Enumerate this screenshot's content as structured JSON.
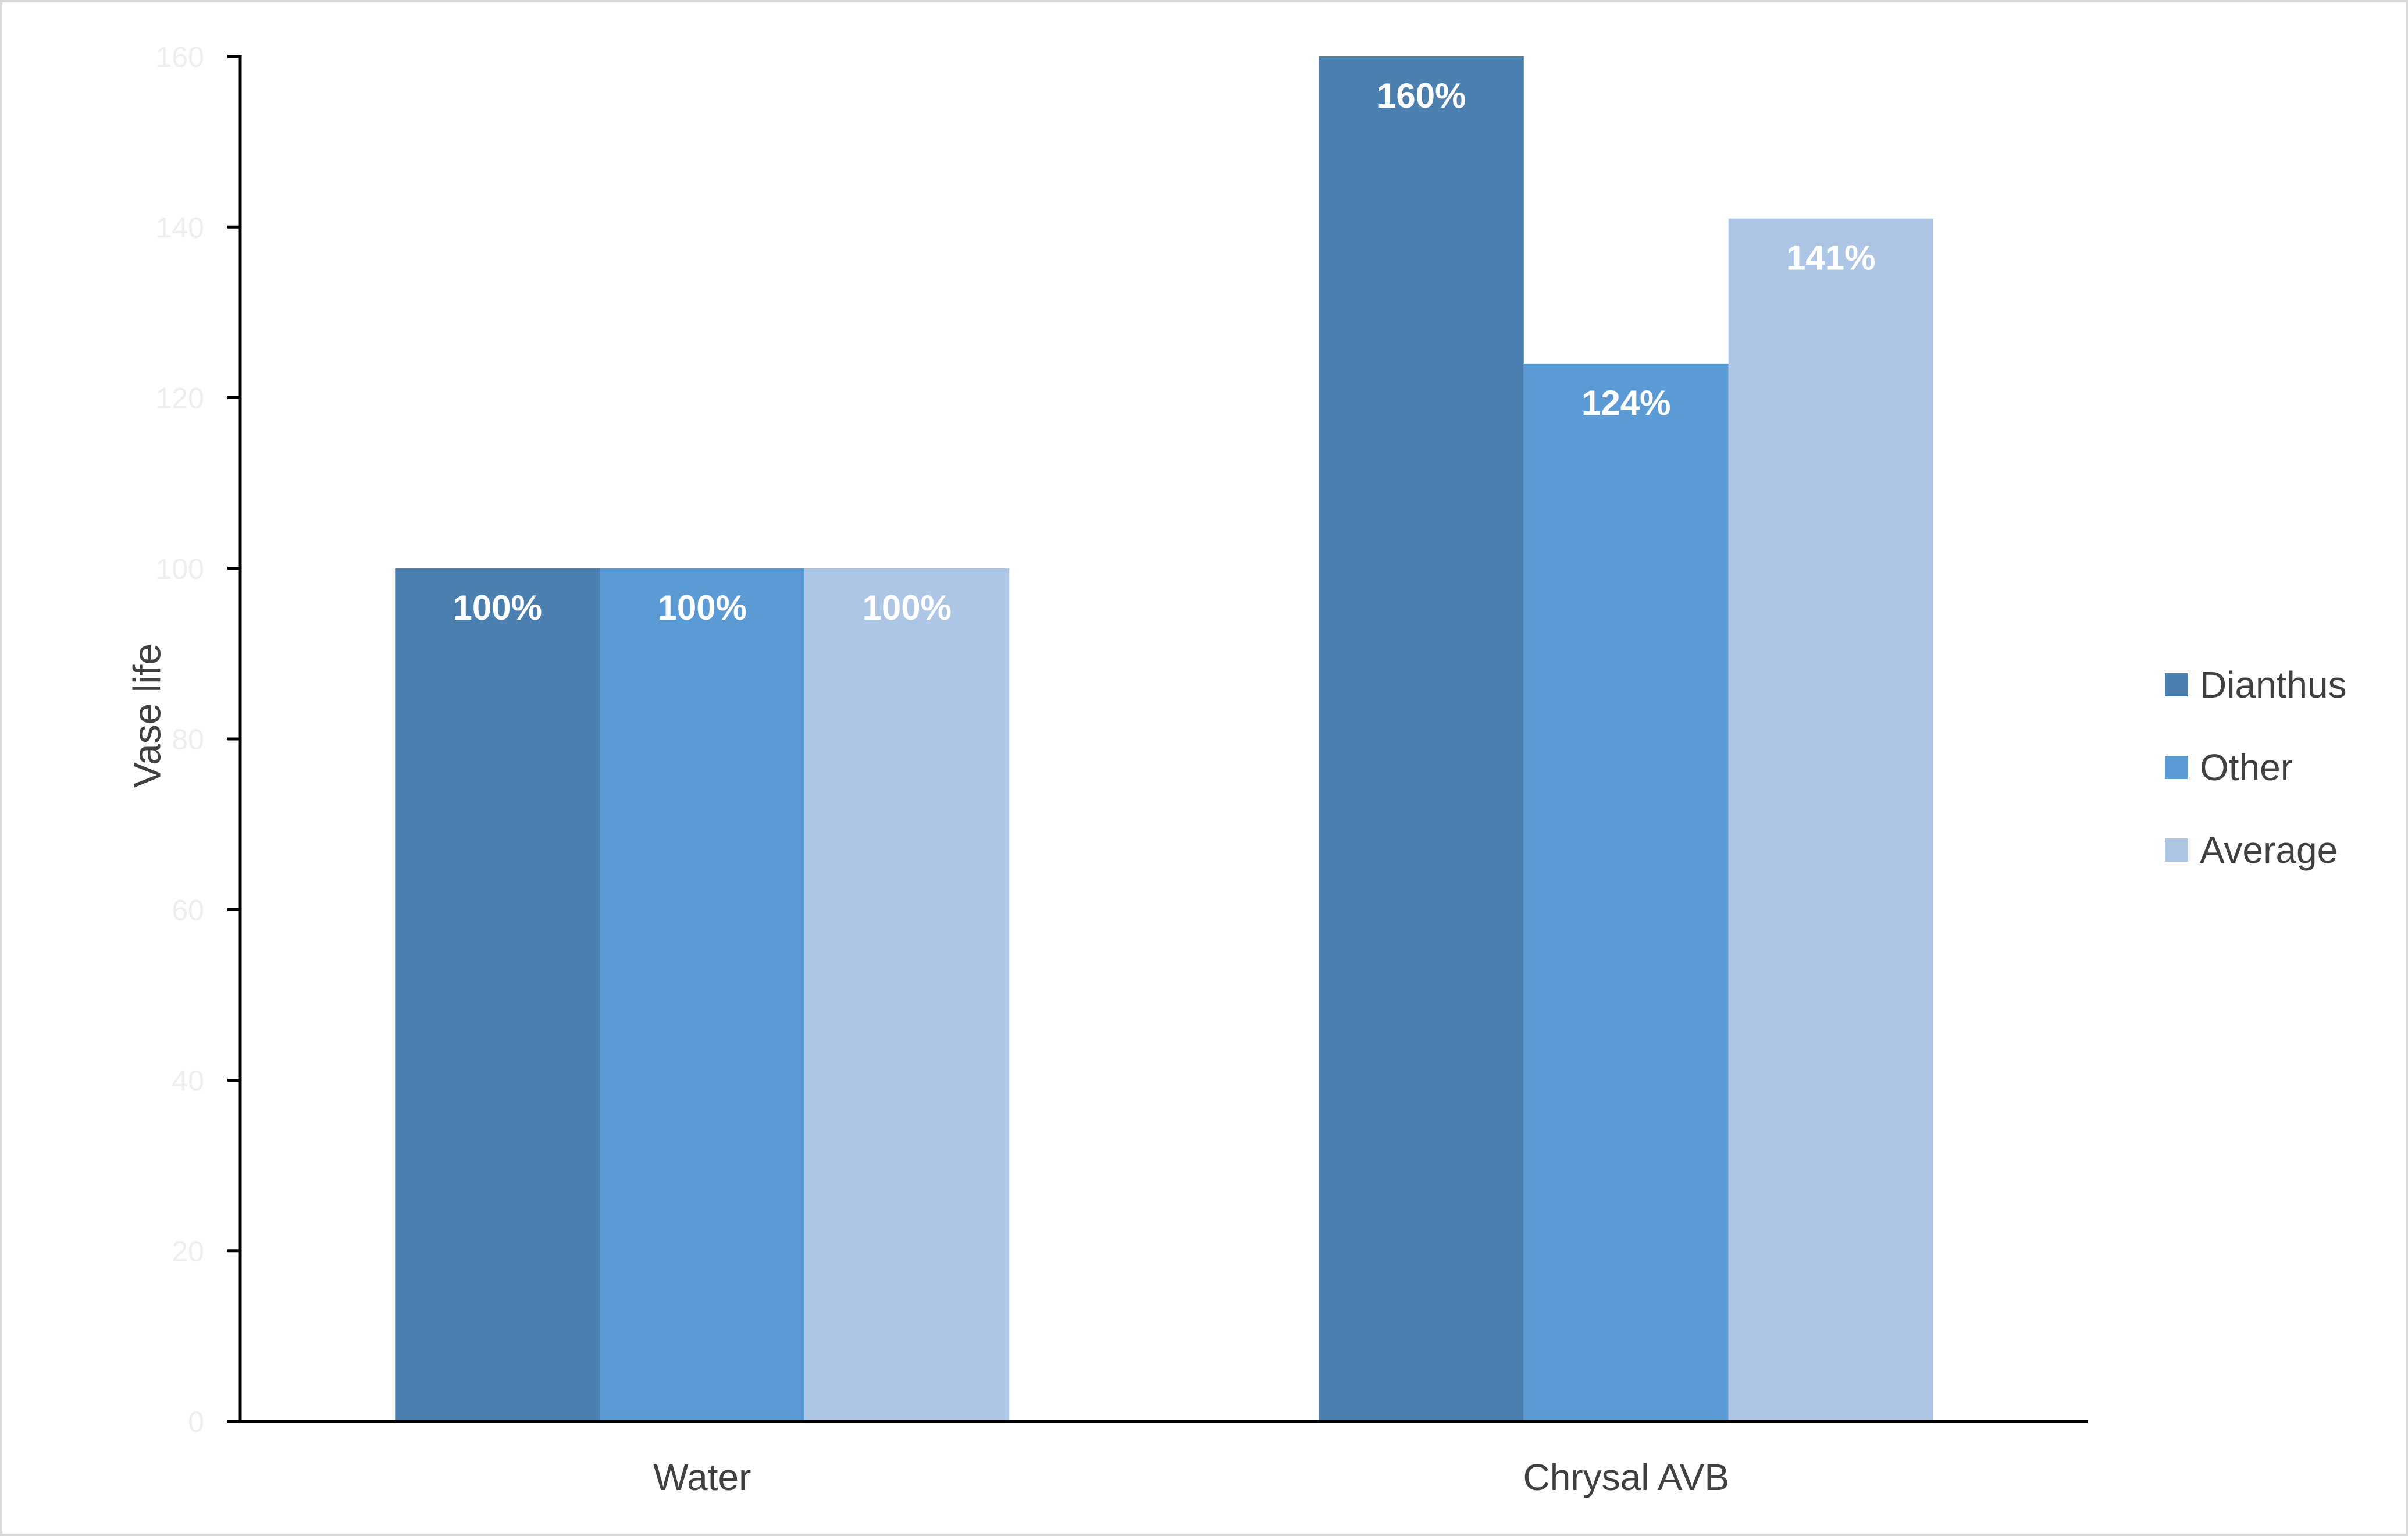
{
  "chart_data": {
    "type": "bar",
    "categories": [
      "Water",
      "Chrysal AVB"
    ],
    "series": [
      {
        "name": "Dianthus",
        "values": [
          100,
          160
        ],
        "labels": [
          "100%",
          "160%"
        ],
        "color": "#4a7fb0"
      },
      {
        "name": "Other",
        "values": [
          100,
          124
        ],
        "labels": [
          "100%",
          "124%"
        ],
        "color": "#5b9bd5"
      },
      {
        "name": "Average",
        "values": [
          100,
          141
        ],
        "labels": [
          "100%",
          "141%"
        ],
        "color": "#adc6e5"
      }
    ],
    "title": "",
    "xlabel": "",
    "ylabel": "Vase life",
    "ylim": [
      0,
      160
    ],
    "yticks": [
      0,
      20,
      40,
      60,
      80,
      100,
      120,
      140,
      160
    ],
    "grid": false,
    "legend_position": "right"
  }
}
